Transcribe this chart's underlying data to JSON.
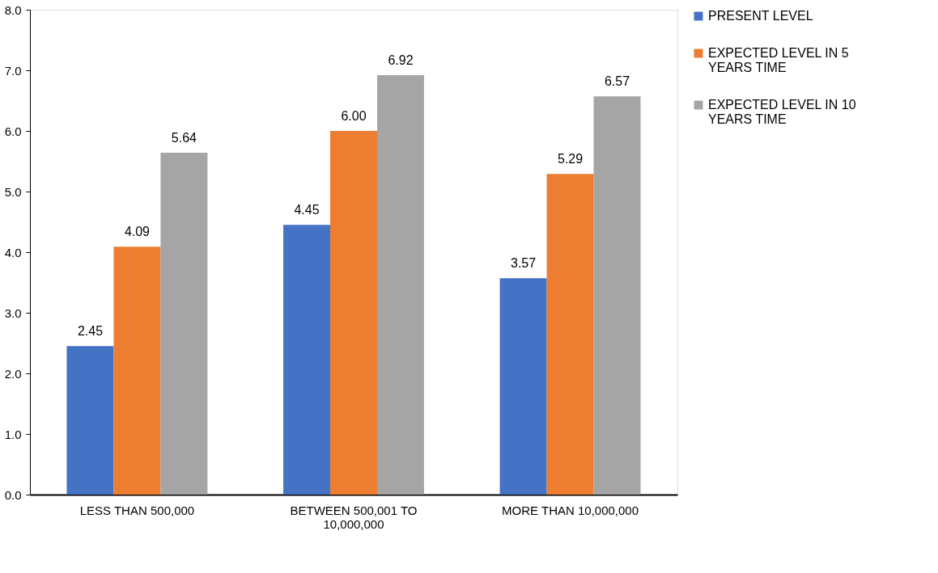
{
  "chart_data": {
    "type": "bar",
    "categories": [
      "LESS THAN 500,000",
      "BETWEEN 500,001 TO\n10,000,000",
      "MORE THAN 10,000,000"
    ],
    "series": [
      {
        "name": "PRESENT LEVEL",
        "color": "#4472c4",
        "values": [
          2.45,
          4.45,
          3.57
        ],
        "value_labels": [
          "2.45",
          "4.45",
          "3.57"
        ]
      },
      {
        "name": "EXPECTED LEVEL IN 5\nYEARS TIME",
        "color": "#ed7d31",
        "values": [
          4.09,
          6.0,
          5.29
        ],
        "value_labels": [
          "4.09",
          "6.00",
          "5.29"
        ]
      },
      {
        "name": "EXPECTED LEVEL IN 10\nYEARS TIME",
        "color": "#a5a5a5",
        "values": [
          5.64,
          6.92,
          6.57
        ],
        "value_labels": [
          "5.64",
          "6.92",
          "6.57"
        ]
      }
    ],
    "ylim": [
      0,
      8
    ],
    "yticks": [
      {
        "value": 0,
        "label": "0.0"
      },
      {
        "value": 1,
        "label": "1.0"
      },
      {
        "value": 2,
        "label": "2.0"
      },
      {
        "value": 3,
        "label": "3.0"
      },
      {
        "value": 4,
        "label": "4.0"
      },
      {
        "value": 5,
        "label": "5.0"
      },
      {
        "value": 6,
        "label": "6.0"
      },
      {
        "value": 7,
        "label": "7.0"
      },
      {
        "value": 8,
        "label": "8.0"
      }
    ],
    "grid": false,
    "legend": "right"
  }
}
